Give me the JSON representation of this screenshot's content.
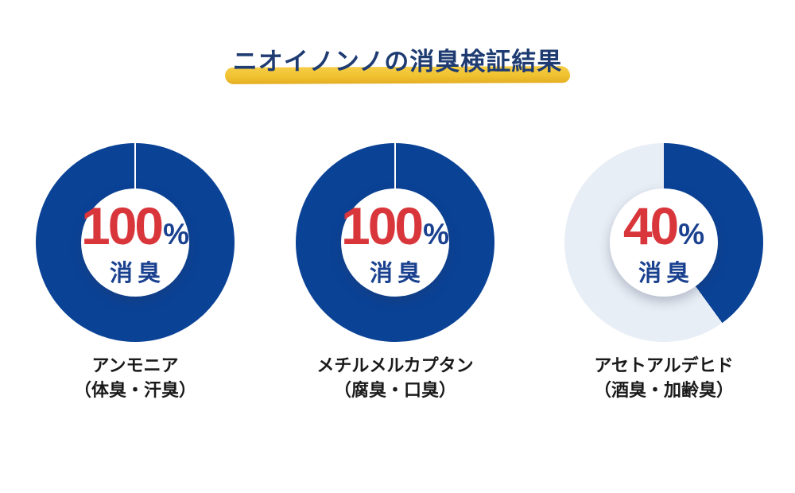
{
  "title": {
    "text": "ニオイノンノの消臭検証結果",
    "text_color": "#1e3b72",
    "highlight_color": "#f0c230"
  },
  "colors": {
    "donut_filled": "#0a4296",
    "donut_empty": "#e8eef5",
    "value_red": "#d9363c",
    "percent_navy": "#1a418f",
    "caption_navy": "#1a418f",
    "category_text": "#1a1a1a",
    "background": "#ffffff"
  },
  "chart_data": [
    {
      "type": "pie",
      "value_pct": 100,
      "unit": "%",
      "caption": "消臭",
      "category": "アンモニア",
      "category_note": "（体臭・汗臭）",
      "filled_color": "#0a4296",
      "empty_color": "#e8eef5",
      "start": "12-oclock",
      "direction": "clockwise"
    },
    {
      "type": "pie",
      "value_pct": 100,
      "unit": "%",
      "caption": "消臭",
      "category": "メチルメルカプタン",
      "category_note": "（腐臭・口臭）",
      "filled_color": "#0a4296",
      "empty_color": "#e8eef5",
      "start": "12-oclock",
      "direction": "clockwise"
    },
    {
      "type": "pie",
      "value_pct": 40,
      "unit": "%",
      "caption": "消臭",
      "category": "アセトアルデヒド",
      "category_note": "（酒臭・加齢臭）",
      "filled_color": "#0a4296",
      "empty_color": "#e8eef5",
      "start": "12-oclock",
      "direction": "clockwise"
    }
  ]
}
